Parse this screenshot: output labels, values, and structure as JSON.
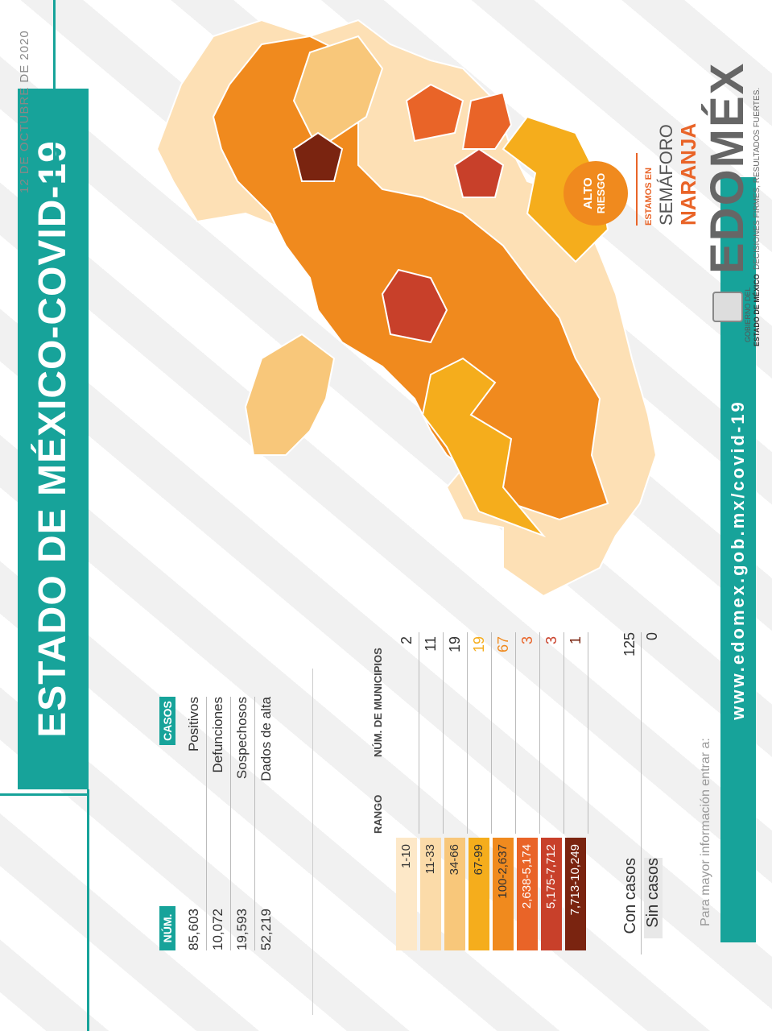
{
  "header": {
    "title": "ESTADO DE MÉXICO-COVID-19",
    "date": "12 DE OCTUBRE DE 2020"
  },
  "summary_table": {
    "col_num": "NÚM.",
    "col_casos": "CASOS",
    "rows": [
      {
        "num": "85,603",
        "label": "Positivos"
      },
      {
        "num": "10,072",
        "label": "Defunciones"
      },
      {
        "num": "19,593",
        "label": "Sospechosos"
      },
      {
        "num": "52,219",
        "label": "Dados de alta"
      }
    ]
  },
  "legend": {
    "col_rango": "RANGO",
    "col_municipios": "NÚM. DE MUNICIPIOS",
    "rows": [
      {
        "range": "1-10",
        "count": "2",
        "color": "#fde8c8",
        "count_color": "#333333"
      },
      {
        "range": "11-33",
        "count": "11",
        "color": "#fbdba9",
        "count_color": "#333333"
      },
      {
        "range": "34-66",
        "count": "19",
        "color": "#f8c77a",
        "count_color": "#333333"
      },
      {
        "range": "67-99",
        "count": "19",
        "color": "#f5ad1c",
        "count_color": "#f5ad1c"
      },
      {
        "range": "100-2,637",
        "count": "67",
        "color": "#f08a1e",
        "count_color": "#f08a1e"
      },
      {
        "range": "2,638-5,174",
        "count": "3",
        "color": "#e96428",
        "count_color": "#e96428"
      },
      {
        "range": "5,175-7,712",
        "count": "3",
        "color": "#c8402a",
        "count_color": "#c8402a"
      },
      {
        "range": "7,713-10,249",
        "count": "1",
        "color": "#7a2410",
        "count_color": "#7a2410"
      }
    ],
    "totals": [
      {
        "label": "Con casos",
        "value": "125"
      },
      {
        "label": "Sin casos",
        "value": "0"
      }
    ]
  },
  "footer": {
    "info": "Para mayor información entrar a:",
    "url": "www.edomex.gob.mx/covid-19"
  },
  "semaforo": {
    "badge_top": "ALTO",
    "badge_bottom": "RIESGO",
    "line1": "ESTAMOS EN",
    "line2": "SEMÁFORO",
    "line3": "NARANJA",
    "badge_color": "#f08a1e"
  },
  "branding": {
    "gov_line1": "GOBIERNO DEL",
    "gov_line2": "ESTADO DE MÉXICO",
    "logo": "EDOMÉX",
    "tagline": "DECISIONES FIRMES, RESULTADOS FUERTES."
  }
}
